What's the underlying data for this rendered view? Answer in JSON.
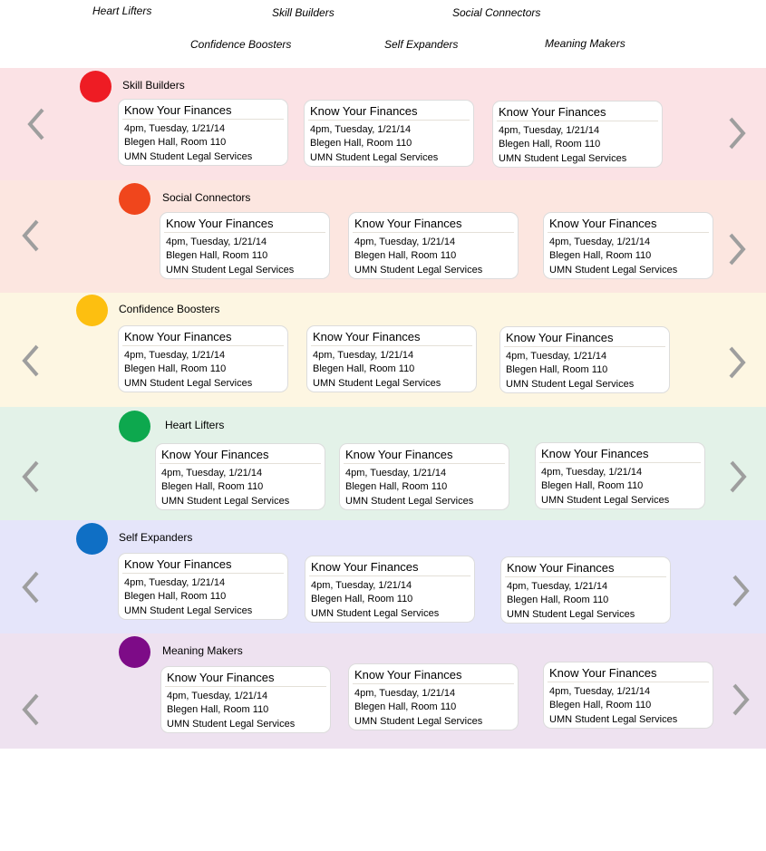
{
  "top_nav": {
    "heart_lifters": "Heart Lifters",
    "skill_builders": "Skill Builders",
    "social_connectors": "Social Connectors",
    "confidence_boosters": "Confidence Boosters",
    "self_expanders": "Self Expanders",
    "meaning_makers": "Meaning Makers"
  },
  "colors": {
    "skill_builders": {
      "band": "#fbe2e5",
      "dot": "#ee1c24"
    },
    "social_connectors": {
      "band": "#fce6e0",
      "dot": "#f0461c"
    },
    "confidence_boosters": {
      "band": "#fdf6e2",
      "dot": "#fdbf10"
    },
    "heart_lifters": {
      "band": "#e3f2e8",
      "dot": "#0da84e"
    },
    "self_expanders": {
      "band": "#e5e5fa",
      "dot": "#0f6fc5"
    },
    "meaning_makers": {
      "band": "#eee2f0",
      "dot": "#7d0b87"
    },
    "arrow": "#9e9e9e"
  },
  "icons": {
    "prev": "chevron-left-icon",
    "next": "chevron-right-icon"
  },
  "rows": [
    {
      "id": "skill_builders",
      "label": "Skill Builders",
      "cards": [
        {
          "title": "Know Your Finances",
          "time": "4pm, Tuesday, 1/21/14",
          "location": "Blegen Hall, Room 110",
          "host": "UMN Student Legal Services"
        },
        {
          "title": "Know Your Finances",
          "time": "4pm, Tuesday, 1/21/14",
          "location": "Blegen Hall, Room 110",
          "host": "UMN Student Legal Services"
        },
        {
          "title": "Know Your Finances",
          "time": "4pm, Tuesday, 1/21/14",
          "location": "Blegen Hall, Room 110",
          "host": "UMN Student Legal Services"
        }
      ]
    },
    {
      "id": "social_connectors",
      "label": "Social Connectors",
      "cards": [
        {
          "title": "Know Your Finances",
          "time": "4pm, Tuesday, 1/21/14",
          "location": "Blegen Hall, Room 110",
          "host": "UMN Student Legal Services"
        },
        {
          "title": "Know Your Finances",
          "time": "4pm, Tuesday, 1/21/14",
          "location": "Blegen Hall, Room 110",
          "host": "UMN Student Legal Services"
        },
        {
          "title": "Know Your Finances",
          "time": "4pm, Tuesday, 1/21/14",
          "location": "Blegen Hall, Room 110",
          "host": "UMN Student Legal Services"
        }
      ]
    },
    {
      "id": "confidence_boosters",
      "label": "Confidence Boosters",
      "cards": [
        {
          "title": "Know Your Finances",
          "time": "4pm, Tuesday, 1/21/14",
          "location": "Blegen Hall, Room 110",
          "host": "UMN Student Legal Services"
        },
        {
          "title": "Know Your Finances",
          "time": "4pm, Tuesday, 1/21/14",
          "location": "Blegen Hall, Room 110",
          "host": "UMN Student Legal Services"
        },
        {
          "title": "Know Your Finances",
          "time": "4pm, Tuesday, 1/21/14",
          "location": "Blegen Hall, Room 110",
          "host": "UMN Student Legal Services"
        }
      ]
    },
    {
      "id": "heart_lifters",
      "label": "Heart Lifters",
      "cards": [
        {
          "title": "Know Your Finances",
          "time": "4pm, Tuesday, 1/21/14",
          "location": "Blegen Hall, Room 110",
          "host": "UMN Student Legal Services"
        },
        {
          "title": "Know Your Finances",
          "time": "4pm, Tuesday, 1/21/14",
          "location": "Blegen Hall, Room 110",
          "host": "UMN Student Legal Services"
        },
        {
          "title": "Know Your Finances",
          "time": "4pm, Tuesday, 1/21/14",
          "location": "Blegen Hall, Room 110",
          "host": "UMN Student Legal Services"
        }
      ]
    },
    {
      "id": "self_expanders",
      "label": "Self Expanders",
      "cards": [
        {
          "title": "Know Your Finances",
          "time": "4pm, Tuesday, 1/21/14",
          "location": "Blegen Hall, Room 110",
          "host": "UMN Student Legal Services"
        },
        {
          "title": "Know Your Finances",
          "time": "4pm, Tuesday, 1/21/14",
          "location": "Blegen Hall, Room 110",
          "host": "UMN Student Legal Services"
        },
        {
          "title": "Know Your Finances",
          "time": "4pm, Tuesday, 1/21/14",
          "location": "Blegen Hall, Room 110",
          "host": "UMN Student Legal Services"
        }
      ]
    },
    {
      "id": "meaning_makers",
      "label": "Meaning Makers",
      "cards": [
        {
          "title": "Know Your Finances",
          "time": "4pm, Tuesday, 1/21/14",
          "location": "Blegen Hall, Room 110",
          "host": "UMN Student Legal Services"
        },
        {
          "title": "Know Your Finances",
          "time": "4pm, Tuesday, 1/21/14",
          "location": "Blegen Hall, Room 110",
          "host": "UMN Student Legal Services"
        },
        {
          "title": "Know Your Finances",
          "time": "4pm, Tuesday, 1/21/14",
          "location": "Blegen Hall, Room 110",
          "host": "UMN Student Legal Services"
        }
      ]
    }
  ]
}
